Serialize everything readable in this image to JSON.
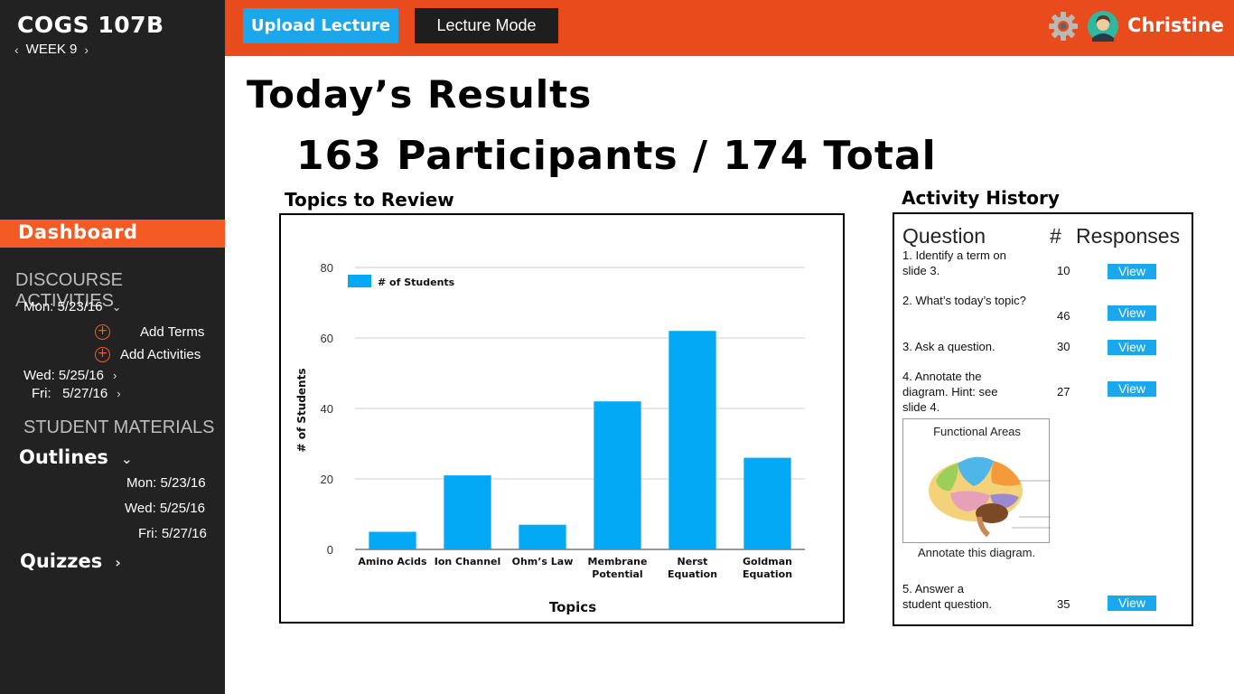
{
  "sidebar": {
    "course": "COGS 107B",
    "week": "WEEK 9",
    "dashboard": "Dashboard",
    "discourse_title": "DISCOURSE ACTIVITIES",
    "mon_date": "Mon: 5/23/16",
    "add_terms": "Add Terms",
    "add_activities": "Add Activities",
    "wed_date": "Wed: 5/25/16",
    "fri_date": "Fri:   5/27/16",
    "materials_title": "STUDENT MATERIALS",
    "outlines": "Outlines",
    "outline_dates": [
      "Mon: 5/23/16",
      "Wed: 5/25/16",
      "Fri: 5/27/16"
    ],
    "quizzes": "Quizzes"
  },
  "topbar": {
    "upload_label": "Upload Lecture",
    "lecture_label": "Lecture Mode",
    "user_name": "Christine"
  },
  "main": {
    "title": "Today’s Results",
    "participants": "163 Participants / 174 Total",
    "topics_title": "Topics to Review"
  },
  "chart_data": {
    "type": "bar",
    "categories": [
      "Amino Acids",
      "Ion Channel",
      "Ohm’s Law",
      "Membrane Potential",
      "Nerst Equation",
      "Goldman Equation"
    ],
    "category_lines": [
      [
        "Amino Acids"
      ],
      [
        "Ion Channel"
      ],
      [
        "Ohm’s Law"
      ],
      [
        "Membrane",
        "Potential"
      ],
      [
        "Nerst",
        "Equation"
      ],
      [
        "Goldman",
        "Equation"
      ]
    ],
    "series": [
      {
        "name": "# of Students",
        "values": [
          5,
          21,
          7,
          42,
          62,
          26
        ]
      }
    ],
    "xlabel": "Topics",
    "ylabel": "# of Students",
    "ylim": [
      0,
      80
    ],
    "yticks": [
      0,
      20,
      40,
      60,
      80
    ],
    "grid": true,
    "legend": "top-left",
    "color": "#03a9f4"
  },
  "activity": {
    "title": "Activity History",
    "col_question": "Question",
    "col_hash": "#",
    "col_responses": "Responses",
    "view_label": "View",
    "rows": [
      {
        "question": "1. Identify a term on slide 3.",
        "count": "10"
      },
      {
        "question": "2. What’s today’s topic?",
        "count": "46"
      },
      {
        "question": "3. Ask a question.",
        "count": "30"
      },
      {
        "question": "4. Annotate the diagram. Hint: see slide 4.",
        "count": "27"
      },
      {
        "question": "5. Answer a student question.",
        "count": "35"
      }
    ],
    "diagram_title": "Functional Areas",
    "diagram_caption": "Annotate this diagram."
  }
}
